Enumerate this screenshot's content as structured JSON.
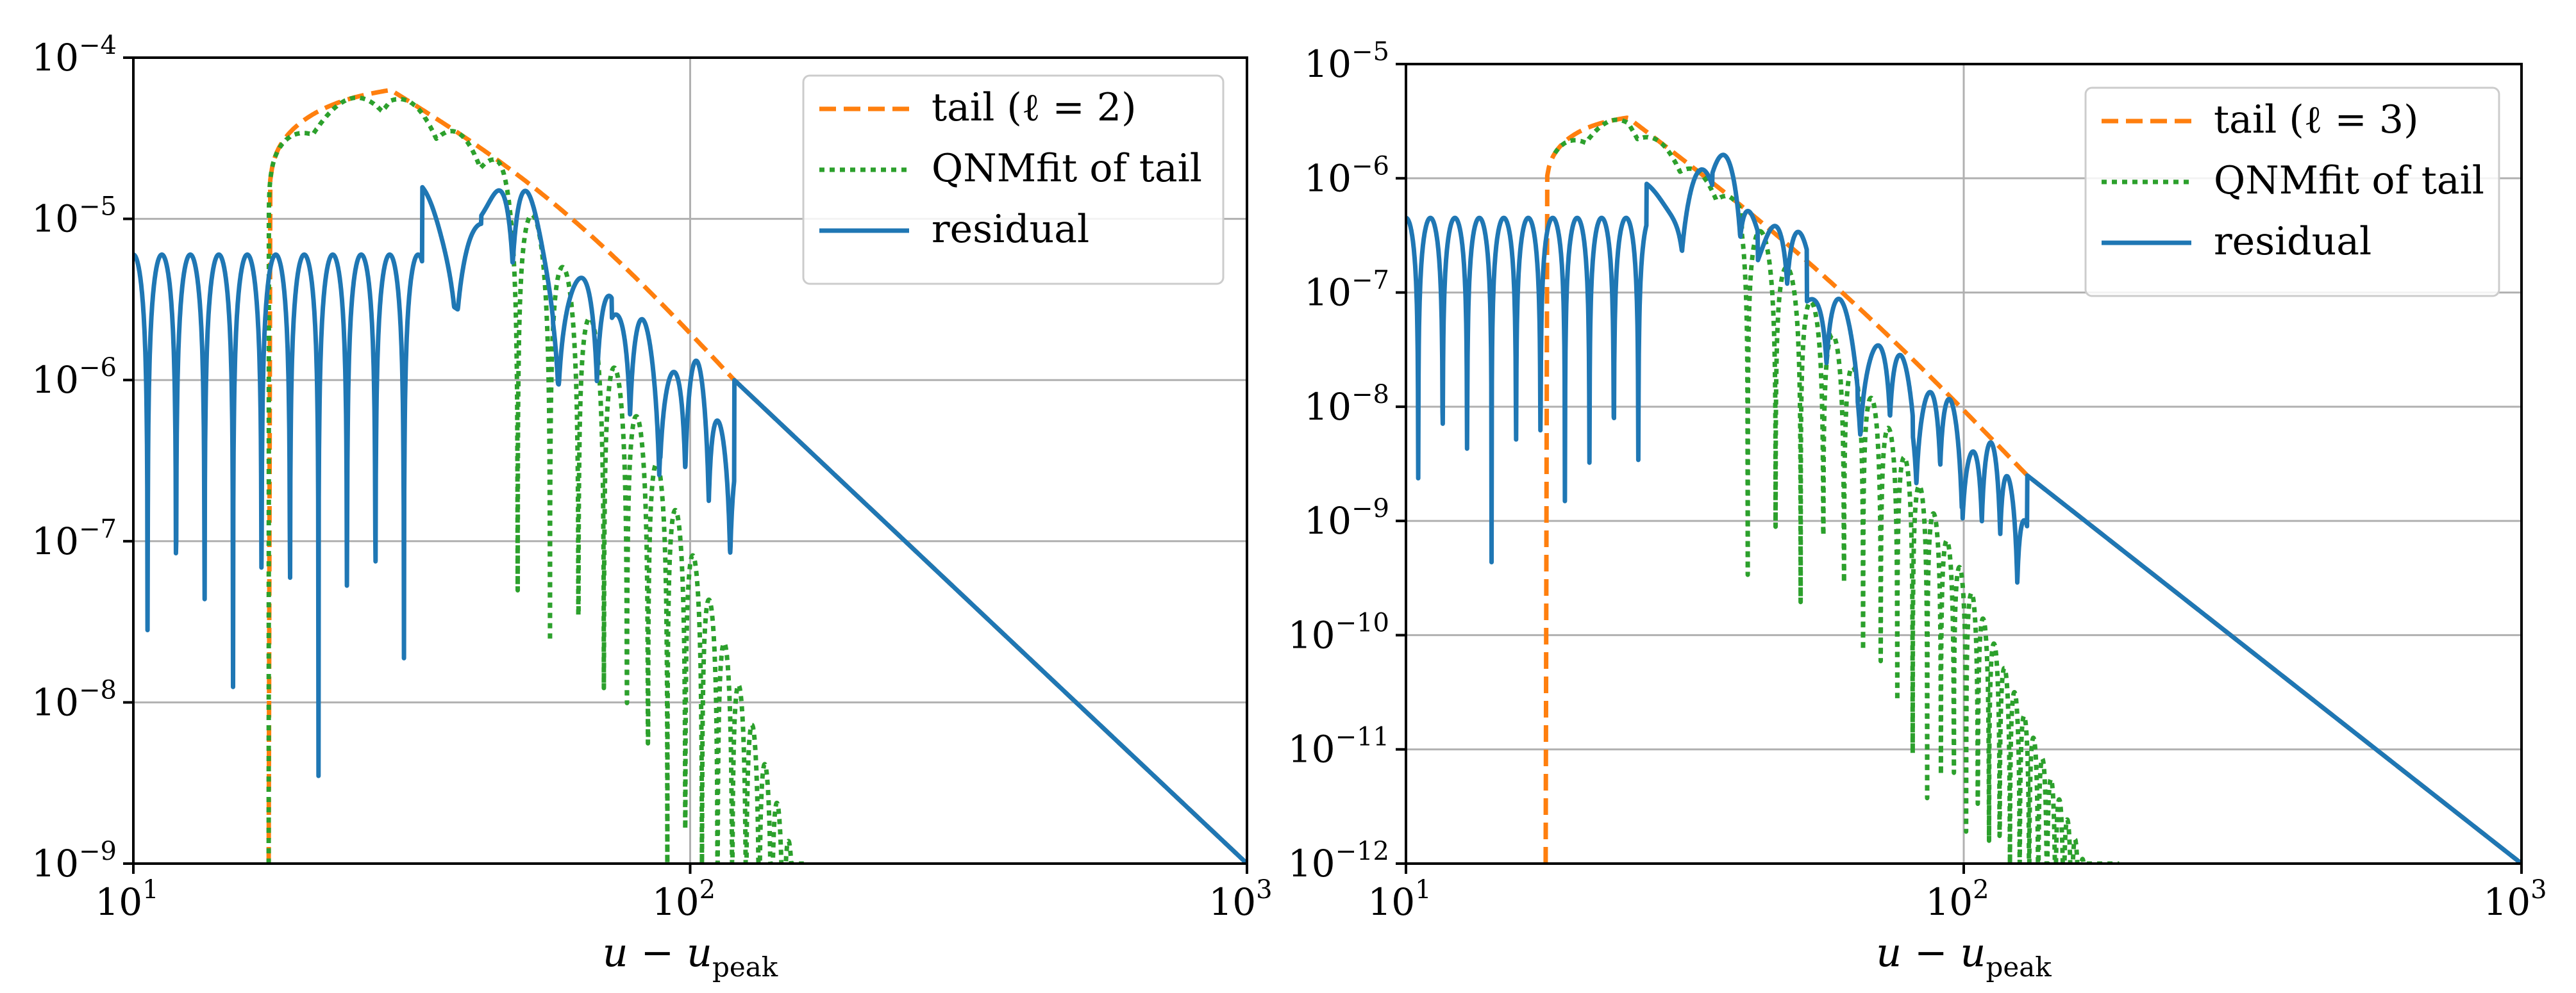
{
  "chart_data": [
    {
      "type": "line",
      "x_scale": "log",
      "y_scale": "log",
      "xlim": [
        10,
        1000
      ],
      "ylim": [
        1e-09,
        0.0001
      ],
      "x_tick_labels": [
        {
          "base": "10",
          "exp": "1",
          "value": 10
        },
        {
          "base": "10",
          "exp": "2",
          "value": 100
        },
        {
          "base": "10",
          "exp": "3",
          "value": 1000
        }
      ],
      "y_tick_labels": [
        {
          "base": "10",
          "exp": "−9",
          "value": 1e-09
        },
        {
          "base": "10",
          "exp": "−8",
          "value": 1e-08
        },
        {
          "base": "10",
          "exp": "−7",
          "value": 1e-07
        },
        {
          "base": "10",
          "exp": "−6",
          "value": 1e-06
        },
        {
          "base": "10",
          "exp": "−5",
          "value": 1e-05
        },
        {
          "base": "10",
          "exp": "−4",
          "value": 0.0001
        }
      ],
      "xlabel": {
        "main": "u − u",
        "sub": "peak"
      },
      "grid": true,
      "legend_position": "top-right",
      "series": [
        {
          "name": "tail (ℓ = 2)",
          "color": "#ff7f0e",
          "style": "dashed",
          "model": {
            "kind": "tail",
            "x0": 17.5,
            "peak_x": 29,
            "peak_y": 6.3e-05,
            "power_law": [
              [
                120,
                1e-06
              ],
              [
                1000,
                1e-09
              ]
            ]
          }
        },
        {
          "name": "QNMfit of tail",
          "color": "#2ca02c",
          "style": "dotted",
          "model": {
            "kind": "qnm",
            "x_start": 17.5,
            "x_end": 160,
            "period": 7.0,
            "min_y": 3e-10,
            "depth_x": 45
          }
        },
        {
          "name": "residual",
          "color": "#1f77b4",
          "style": "solid",
          "model": {
            "kind": "residual",
            "x_start": 10,
            "early_level": 6e-06,
            "early_end": 33,
            "bumps": [
              [
                37,
                1e-05
              ],
              [
                48,
                2.6e-05
              ],
              [
                67,
                5e-06
              ],
              [
                78,
                3e-06
              ],
              [
                100,
                1.4e-06
              ]
            ],
            "period": 2.0,
            "join_x": 120
          }
        }
      ]
    },
    {
      "type": "line",
      "x_scale": "log",
      "y_scale": "log",
      "xlim": [
        10,
        1000
      ],
      "ylim": [
        1e-12,
        1e-05
      ],
      "x_tick_labels": [
        {
          "base": "10",
          "exp": "1",
          "value": 10
        },
        {
          "base": "10",
          "exp": "2",
          "value": 100
        },
        {
          "base": "10",
          "exp": "3",
          "value": 1000
        }
      ],
      "y_tick_labels": [
        {
          "base": "10",
          "exp": "−12",
          "value": 1e-12
        },
        {
          "base": "10",
          "exp": "−11",
          "value": 1e-11
        },
        {
          "base": "10",
          "exp": "−10",
          "value": 1e-10
        },
        {
          "base": "10",
          "exp": "−9",
          "value": 1e-09
        },
        {
          "base": "10",
          "exp": "−8",
          "value": 1e-08
        },
        {
          "base": "10",
          "exp": "−7",
          "value": 1e-07
        },
        {
          "base": "10",
          "exp": "−6",
          "value": 1e-06
        },
        {
          "base": "10",
          "exp": "−5",
          "value": 1e-05
        }
      ],
      "xlabel": {
        "main": "u − u",
        "sub": "peak"
      },
      "grid": true,
      "legend_position": "top-right",
      "series": [
        {
          "name": "tail (ℓ = 3)",
          "color": "#ff7f0e",
          "style": "dashed",
          "model": {
            "kind": "tail",
            "x0": 17.8,
            "peak_x": 25,
            "peak_y": 3.4e-06,
            "power_law": [
              [
                130,
                2.5e-09
              ],
              [
                1000,
                1e-12
              ]
            ]
          }
        },
        {
          "name": "QNMfit of tail",
          "color": "#2ca02c",
          "style": "dotted",
          "model": {
            "kind": "qnm",
            "x_start": 18.5,
            "x_end": 190,
            "period": 5.0,
            "min_y": 1e-12,
            "depth_x": 40
          }
        },
        {
          "name": "residual",
          "color": "#1f77b4",
          "style": "solid",
          "model": {
            "kind": "residual",
            "x_start": 10,
            "early_level": 4.5e-07,
            "early_end": 27,
            "bumps": [
              [
                33,
                1.5e-06
              ],
              [
                38,
                2e-06
              ],
              [
                48,
                6e-07
              ],
              [
                57,
                1.2e-07
              ],
              [
                73,
                4e-08
              ],
              [
                90,
                1.5e-08
              ],
              [
                110,
                5e-09
              ]
            ],
            "period": 1.7,
            "join_x": 130
          }
        }
      ]
    }
  ]
}
